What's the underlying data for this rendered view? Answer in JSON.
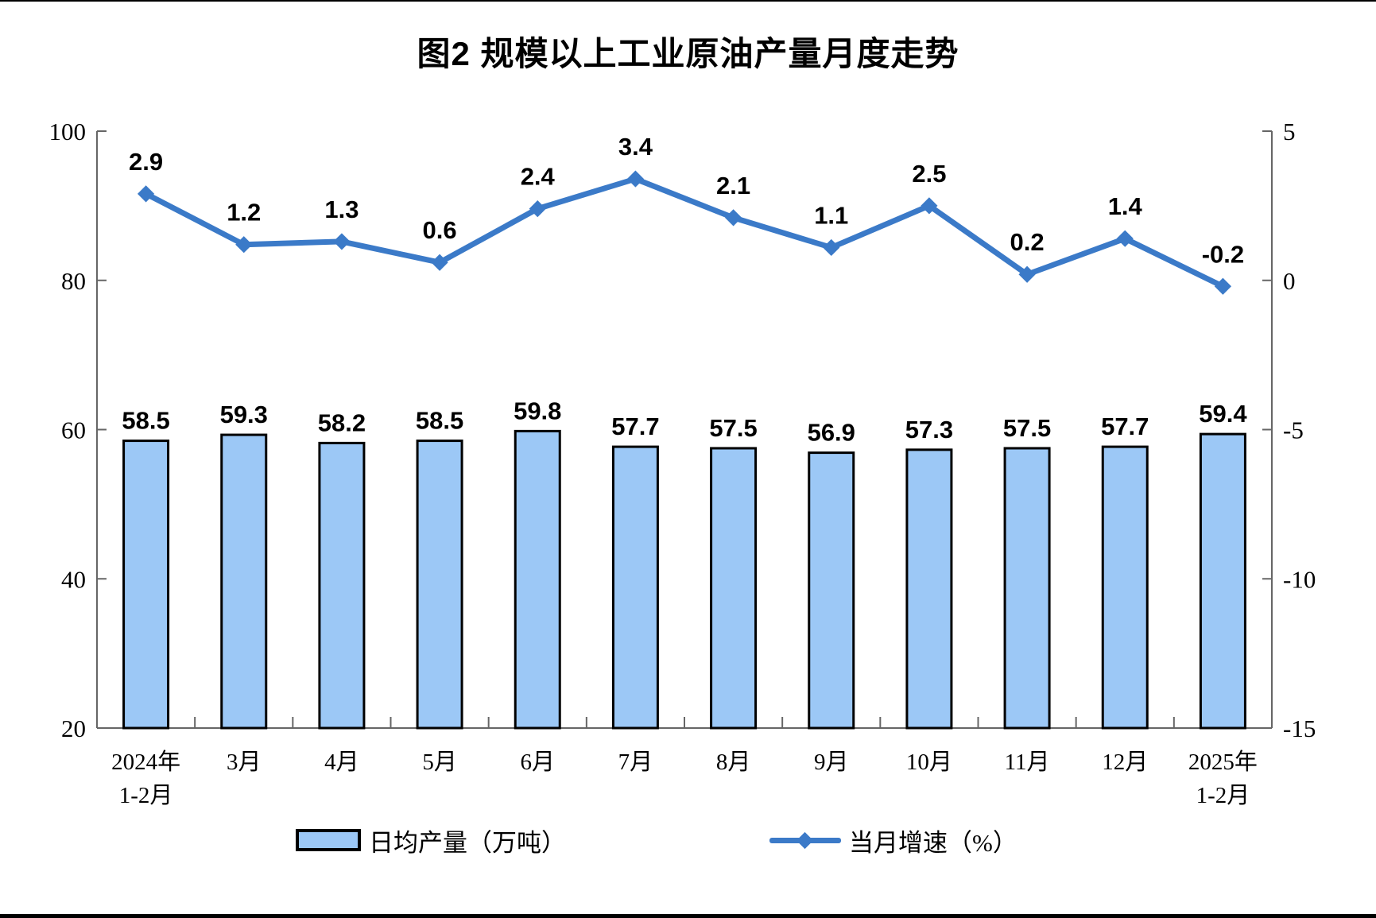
{
  "title": "图2 规模以上工业原油产量月度走势",
  "chart_data": {
    "type": "bar",
    "subtype": "bar-line-combo",
    "title": "图2 规模以上工业原油产量月度走势",
    "categories": [
      "2024年\n1-2月",
      "3月",
      "4月",
      "5月",
      "6月",
      "7月",
      "8月",
      "9月",
      "10月",
      "11月",
      "12月",
      "2025年\n1-2月"
    ],
    "series": [
      {
        "name": "日均产量（万吨）",
        "type": "bar",
        "axis": "left",
        "values": [
          58.5,
          59.3,
          58.2,
          58.5,
          59.8,
          57.7,
          57.5,
          56.9,
          57.3,
          57.5,
          57.7,
          59.4
        ]
      },
      {
        "name": "当月增速（%）",
        "type": "line",
        "axis": "right",
        "values": [
          2.9,
          1.2,
          1.3,
          0.6,
          2.4,
          3.4,
          2.1,
          1.1,
          2.5,
          0.2,
          1.4,
          -0.2
        ]
      }
    ],
    "left_axis": {
      "min": 20,
      "max": 100,
      "ticks": [
        100,
        80,
        60,
        40,
        20
      ]
    },
    "right_axis": {
      "min": -15,
      "max": 5,
      "ticks": [
        5,
        0,
        -5,
        -10,
        -15
      ]
    },
    "grid": false,
    "legend_position": "bottom",
    "colors": {
      "bar_fill": "#9cc8f6",
      "bar_border": "#000000",
      "line": "#3b7ac8",
      "axis": "#666666",
      "label": "#000000"
    }
  },
  "legend": {
    "bar_label": "日均产量（万吨）",
    "line_label": "当月增速（%）"
  }
}
